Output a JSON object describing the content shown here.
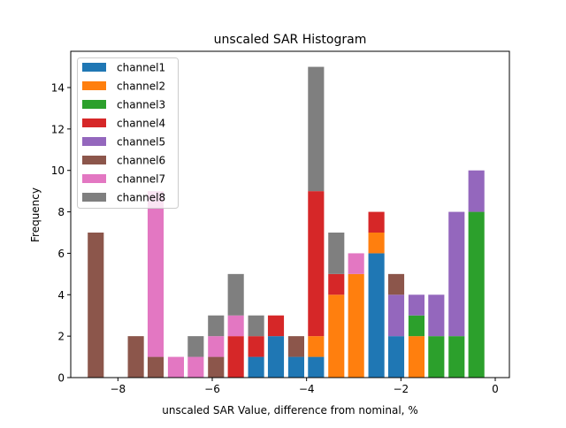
{
  "chart_data": {
    "type": "bar",
    "stacked": true,
    "title": "unscaled SAR Histogram",
    "xlabel": "unscaled SAR Value, difference from nominal, %",
    "ylabel": "Frequency",
    "xlim": [
      -9.0,
      0.3
    ],
    "ylim": [
      0,
      15.75
    ],
    "xticks": [
      -8,
      -6,
      -4,
      -2,
      0
    ],
    "xtick_labels": [
      "−8",
      "−6",
      "−4",
      "−2",
      "0"
    ],
    "yticks": [
      0,
      2,
      4,
      6,
      8,
      10,
      12,
      14
    ],
    "ytick_labels": [
      "0",
      "2",
      "4",
      "6",
      "8",
      "10",
      "12",
      "14"
    ],
    "grid": false,
    "legend_position": "top-left",
    "bin_width": 0.34,
    "x": [
      -8.47,
      -7.62,
      -7.2,
      -6.77,
      -6.35,
      -5.92,
      -5.5,
      -5.07,
      -4.65,
      -4.22,
      -3.8,
      -3.37,
      -2.95,
      -2.52,
      -2.1,
      -1.67,
      -1.25,
      -0.82,
      -0.4
    ],
    "series": [
      {
        "name": "channel1",
        "color": "#1f77b4",
        "values": [
          0,
          0,
          0,
          0,
          0,
          0,
          0,
          1,
          2,
          1,
          1,
          0,
          0,
          6,
          2,
          0,
          0,
          0,
          0
        ]
      },
      {
        "name": "channel2",
        "color": "#ff7f0e",
        "values": [
          0,
          0,
          0,
          0,
          0,
          0,
          0,
          0,
          0,
          0,
          1,
          4,
          5,
          1,
          0,
          2,
          0,
          0,
          0
        ]
      },
      {
        "name": "channel3",
        "color": "#2ca02c",
        "values": [
          0,
          0,
          0,
          0,
          0,
          0,
          0,
          0,
          0,
          0,
          0,
          0,
          0,
          0,
          0,
          1,
          2,
          2,
          8
        ]
      },
      {
        "name": "channel4",
        "color": "#d62728",
        "values": [
          0,
          0,
          0,
          0,
          0,
          0,
          2,
          1,
          1,
          0,
          7,
          1,
          0,
          1,
          0,
          0,
          0,
          0,
          0
        ]
      },
      {
        "name": "channel5",
        "color": "#9467bd",
        "values": [
          0,
          0,
          0,
          0,
          0,
          0,
          0,
          0,
          0,
          0,
          0,
          0,
          0,
          0,
          2,
          1,
          2,
          6,
          2
        ]
      },
      {
        "name": "channel6",
        "color": "#8c564b",
        "values": [
          7,
          2,
          1,
          0,
          0,
          1,
          0,
          0,
          0,
          1,
          0,
          0,
          0,
          0,
          1,
          0,
          0,
          0,
          0
        ]
      },
      {
        "name": "channel7",
        "color": "#e377c2",
        "values": [
          0,
          0,
          8,
          1,
          1,
          1,
          1,
          0,
          0,
          0,
          0,
          0,
          1,
          0,
          0,
          0,
          0,
          0,
          0
        ]
      },
      {
        "name": "channel8",
        "color": "#7f7f7f",
        "values": [
          0,
          0,
          0,
          0,
          1,
          1,
          2,
          1,
          0,
          0,
          6,
          2,
          0,
          0,
          0,
          0,
          0,
          0,
          0
        ]
      }
    ]
  }
}
